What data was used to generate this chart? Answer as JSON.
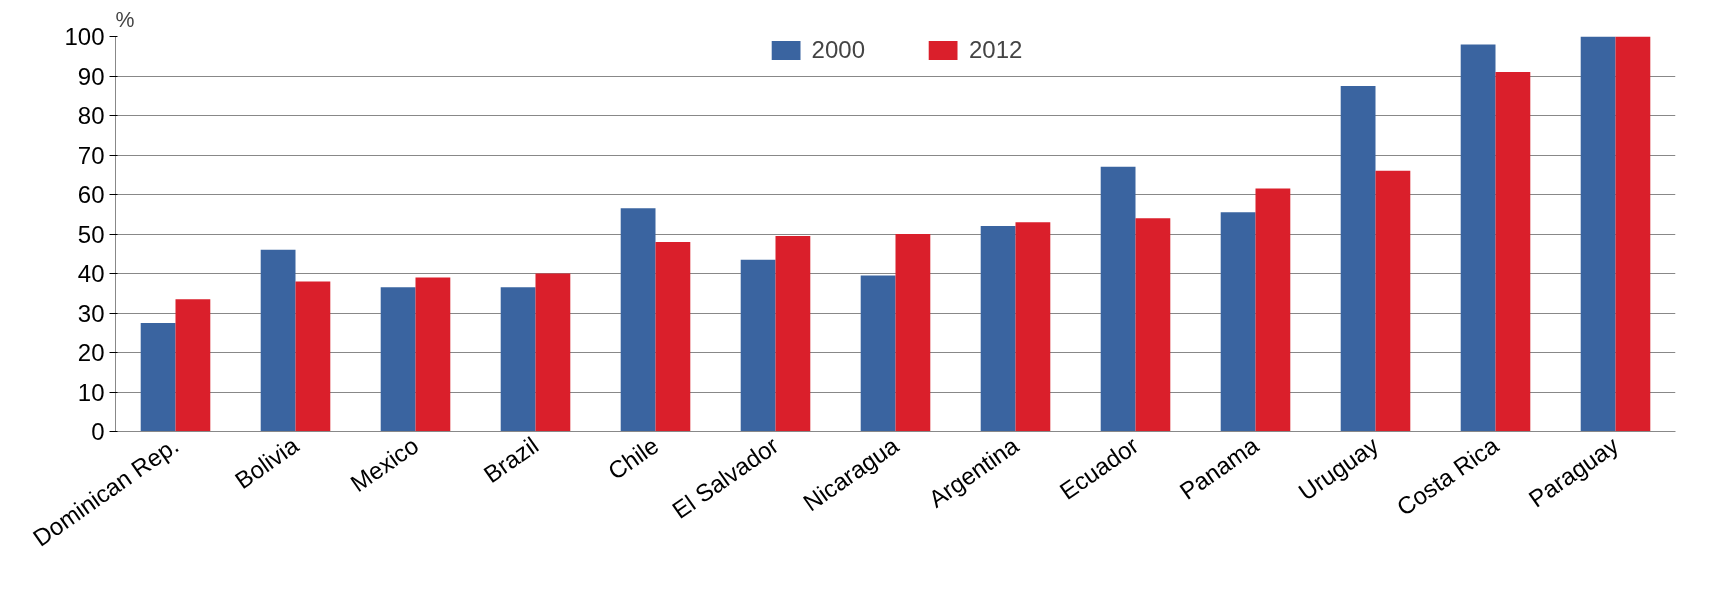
{
  "chart_data": {
    "type": "bar",
    "ylabel": "%",
    "categories": [
      "Dominican Rep.",
      "Bolivia",
      "Mexico",
      "Brazil",
      "Chile",
      "El Salvador",
      "Nicaragua",
      "Argentina",
      "Ecuador",
      "Panama",
      "Uruguay",
      "Costa Rica",
      "Paraguay"
    ],
    "series": [
      {
        "name": "2000",
        "color": "#3a64a0",
        "values": [
          27.5,
          46,
          36.5,
          36.5,
          56.5,
          43.5,
          39.5,
          52,
          67,
          55.5,
          87.5,
          98,
          100
        ]
      },
      {
        "name": "2012",
        "color": "#da1f2b",
        "values": [
          33.5,
          38,
          39,
          40,
          48,
          49.5,
          50,
          53,
          54,
          61.5,
          66,
          91,
          100
        ]
      }
    ],
    "ylim": [
      0,
      100
    ],
    "yticks": [
      0,
      10,
      20,
      30,
      40,
      50,
      60,
      70,
      80,
      90,
      100
    ],
    "grid": "y",
    "legend": "top"
  }
}
